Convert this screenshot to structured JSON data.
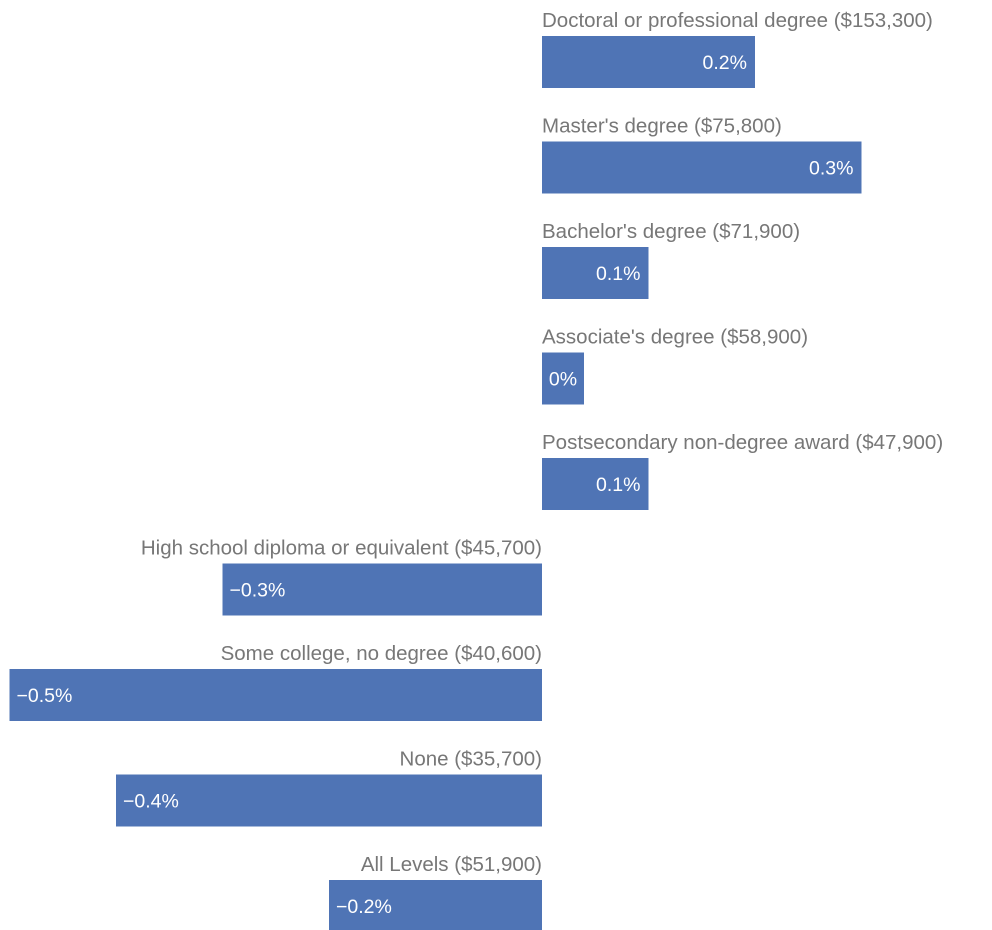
{
  "chart_data": {
    "type": "bar",
    "orientation": "horizontal",
    "categories": [
      "Doctoral or professional degree ($153,300)",
      "Master's degree ($75,800)",
      "Bachelor's degree ($71,900)",
      "Associate's degree ($58,900)",
      "Postsecondary non-degree award ($47,900)",
      "High school diploma or equivalent ($45,700)",
      "Some college, no degree ($40,600)",
      "None ($35,700)",
      "All Levels ($51,900)"
    ],
    "values": [
      0.2,
      0.3,
      0.1,
      0.0,
      0.1,
      -0.3,
      -0.5,
      -0.4,
      -0.2
    ],
    "value_labels": [
      "0.2%",
      "0.3%",
      "0.1%",
      "0%",
      "0.1%",
      "−0.3%",
      "−0.5%",
      "−0.4%",
      "−0.2%"
    ],
    "xlim": [
      -0.5,
      0.35
    ],
    "grid": false,
    "colors": {
      "bar": "#4f74b5",
      "category_text": "#777777",
      "value_text": "#ffffff"
    }
  }
}
